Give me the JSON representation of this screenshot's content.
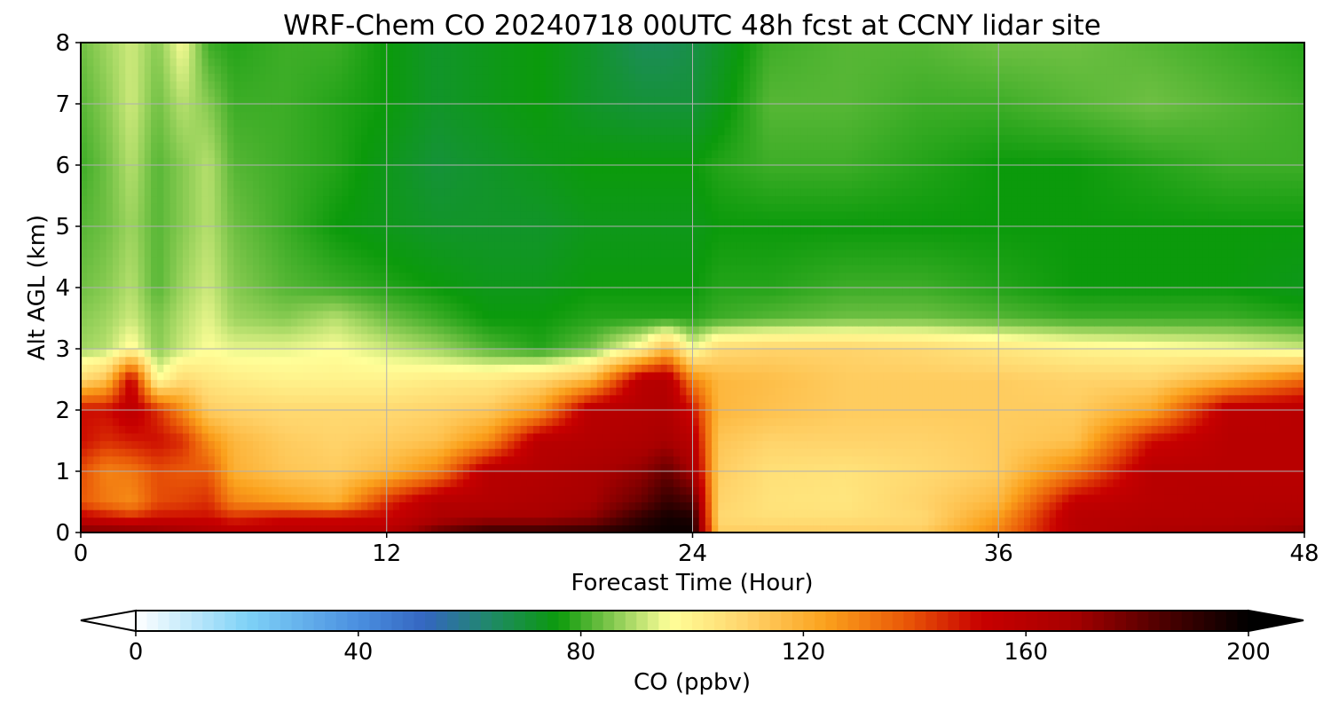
{
  "chart_data": {
    "type": "heatmap",
    "title": "WRF-Chem CO  20240718 00UTC 48h fcst at CCNY lidar site",
    "xlabel": "Forecast Time (Hour)",
    "ylabel": "Alt AGL (km)",
    "xlim": [
      0,
      48
    ],
    "ylim": [
      0,
      8
    ],
    "xticks": [
      0,
      12,
      24,
      36,
      48
    ],
    "yticks": [
      0,
      1,
      2,
      3,
      4,
      5,
      6,
      7,
      8
    ],
    "grid": true,
    "colorbar": {
      "label": "CO  (ppbv)",
      "range": [
        0,
        200
      ],
      "ticks": [
        0,
        40,
        80,
        120,
        160,
        200
      ],
      "extend": "both",
      "colors": [
        [
          0,
          "#ffffff"
        ],
        [
          20,
          "#7fd2f7"
        ],
        [
          40,
          "#4a8fe0"
        ],
        [
          52,
          "#3466c0"
        ],
        [
          64,
          "#1f8a66"
        ],
        [
          76,
          "#0b9a0b"
        ],
        [
          84,
          "#6fc043"
        ],
        [
          96,
          "#ffff99"
        ],
        [
          110,
          "#ffd36a"
        ],
        [
          124,
          "#fba11c"
        ],
        [
          138,
          "#ea5a08"
        ],
        [
          152,
          "#c80000"
        ],
        [
          168,
          "#a80000"
        ],
        [
          184,
          "#500000"
        ],
        [
          200,
          "#000000"
        ]
      ]
    },
    "x": [
      0,
      1,
      2,
      3,
      4,
      5,
      6,
      8,
      10,
      12,
      14,
      16,
      18,
      20,
      22,
      23,
      24,
      25,
      27,
      30,
      33,
      36,
      39,
      42,
      45,
      48
    ],
    "y": [
      0,
      0.25,
      0.5,
      1,
      1.5,
      2,
      2.5,
      3,
      3.5,
      4,
      5,
      6,
      7,
      8
    ],
    "z": [
      [
        178,
        178,
        178,
        175,
        170,
        165,
        160,
        160,
        160,
        162,
        180,
        190,
        190,
        192,
        196,
        198,
        198,
        112,
        112,
        112,
        112,
        130,
        160,
        165,
        168,
        172
      ],
      [
        155,
        150,
        145,
        150,
        150,
        150,
        145,
        150,
        150,
        152,
        165,
        168,
        168,
        172,
        190,
        196,
        194,
        108,
        106,
        106,
        108,
        125,
        160,
        162,
        162,
        165
      ],
      [
        138,
        132,
        128,
        140,
        142,
        145,
        130,
        125,
        120,
        145,
        162,
        162,
        165,
        168,
        180,
        190,
        185,
        110,
        105,
        104,
        110,
        118,
        155,
        160,
        162,
        162
      ],
      [
        140,
        130,
        132,
        140,
        138,
        138,
        120,
        114,
        112,
        118,
        130,
        160,
        162,
        166,
        172,
        180,
        168,
        112,
        106,
        105,
        108,
        112,
        132,
        160,
        160,
        160
      ],
      [
        150,
        145,
        148,
        150,
        145,
        128,
        118,
        112,
        110,
        112,
        115,
        128,
        160,
        162,
        165,
        168,
        160,
        114,
        110,
        110,
        110,
        112,
        115,
        150,
        160,
        160
      ],
      [
        150,
        150,
        158,
        145,
        128,
        112,
        110,
        108,
        108,
        108,
        110,
        113,
        125,
        160,
        162,
        164,
        150,
        118,
        115,
        112,
        112,
        112,
        112,
        122,
        158,
        160
      ],
      [
        108,
        115,
        155,
        96,
        108,
        104,
        102,
        100,
        100,
        100,
        102,
        103,
        108,
        118,
        160,
        162,
        130,
        118,
        116,
        112,
        112,
        112,
        110,
        110,
        120,
        135
      ],
      [
        88,
        90,
        98,
        86,
        92,
        96,
        94,
        94,
        96,
        92,
        88,
        82,
        78,
        84,
        100,
        118,
        95,
        108,
        110,
        110,
        108,
        104,
        100,
        98,
        96,
        92
      ],
      [
        86,
        88,
        92,
        85,
        90,
        94,
        88,
        86,
        90,
        84,
        80,
        76,
        76,
        78,
        78,
        78,
        78,
        80,
        82,
        84,
        84,
        82,
        80,
        80,
        80,
        78
      ],
      [
        84,
        86,
        90,
        82,
        88,
        92,
        86,
        82,
        80,
        78,
        76,
        74,
        74,
        76,
        76,
        76,
        76,
        78,
        78,
        80,
        80,
        78,
        76,
        76,
        76,
        74
      ],
      [
        82,
        84,
        88,
        82,
        86,
        90,
        84,
        80,
        76,
        74,
        72,
        72,
        72,
        74,
        74,
        74,
        74,
        76,
        76,
        76,
        76,
        76,
        76,
        76,
        76,
        76
      ],
      [
        80,
        84,
        90,
        82,
        86,
        90,
        82,
        80,
        78,
        74,
        70,
        72,
        74,
        76,
        76,
        76,
        76,
        78,
        80,
        80,
        78,
        76,
        76,
        78,
        80,
        80
      ],
      [
        82,
        86,
        92,
        84,
        90,
        86,
        80,
        80,
        78,
        76,
        72,
        74,
        76,
        72,
        70,
        70,
        70,
        74,
        82,
        82,
        80,
        80,
        82,
        84,
        82,
        80
      ],
      [
        84,
        88,
        92,
        86,
        96,
        80,
        78,
        80,
        80,
        76,
        72,
        74,
        76,
        72,
        66,
        66,
        68,
        72,
        80,
        82,
        82,
        84,
        84,
        82,
        80,
        78
      ]
    ]
  }
}
